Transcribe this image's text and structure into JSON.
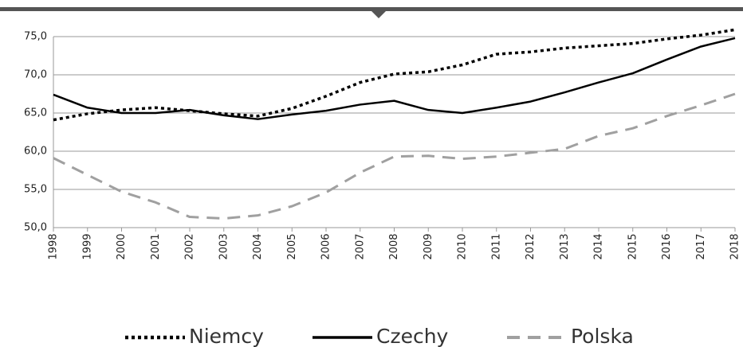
{
  "chart_data": {
    "type": "line",
    "categories": [
      "1998",
      "1999",
      "2000",
      "2001",
      "2002",
      "2003",
      "2004",
      "2005",
      "2006",
      "2007",
      "2008",
      "2009",
      "2010",
      "2011",
      "2012",
      "2013",
      "2014",
      "2015",
      "2016",
      "2017",
      "2018"
    ],
    "series": [
      {
        "name": "Niemcy",
        "color": "#000000",
        "style": "dotted",
        "values": [
          64.1,
          64.9,
          65.4,
          65.7,
          65.3,
          64.9,
          64.6,
          65.6,
          67.2,
          69.0,
          70.1,
          70.4,
          71.3,
          72.7,
          73.0,
          73.5,
          73.8,
          74.1,
          74.7,
          75.2,
          75.9
        ]
      },
      {
        "name": "Czechy",
        "color": "#000000",
        "style": "solid",
        "values": [
          67.4,
          65.7,
          65.0,
          65.0,
          65.4,
          64.7,
          64.2,
          64.8,
          65.3,
          66.1,
          66.6,
          65.4,
          65.0,
          65.7,
          66.5,
          67.7,
          69.0,
          70.2,
          72.0,
          73.7,
          74.8
        ]
      },
      {
        "name": "Polska",
        "color": "#a0a0a0",
        "style": "dashed",
        "values": [
          59.1,
          56.9,
          54.7,
          53.3,
          51.4,
          51.2,
          51.6,
          52.8,
          54.6,
          57.2,
          59.3,
          59.4,
          59.0,
          59.3,
          59.8,
          60.3,
          62.0,
          63.0,
          64.6,
          66.0,
          67.5
        ]
      }
    ],
    "ylim": [
      50,
      75
    ],
    "yticks": [
      {
        "value": 50,
        "label": "50,0"
      },
      {
        "value": 55,
        "label": "55,0"
      },
      {
        "value": 60,
        "label": "60,0"
      },
      {
        "value": 65,
        "label": "65,0"
      },
      {
        "value": 70,
        "label": "70,0"
      },
      {
        "value": 75,
        "label": "75,0"
      }
    ],
    "grid": true,
    "legend": "bottom"
  }
}
